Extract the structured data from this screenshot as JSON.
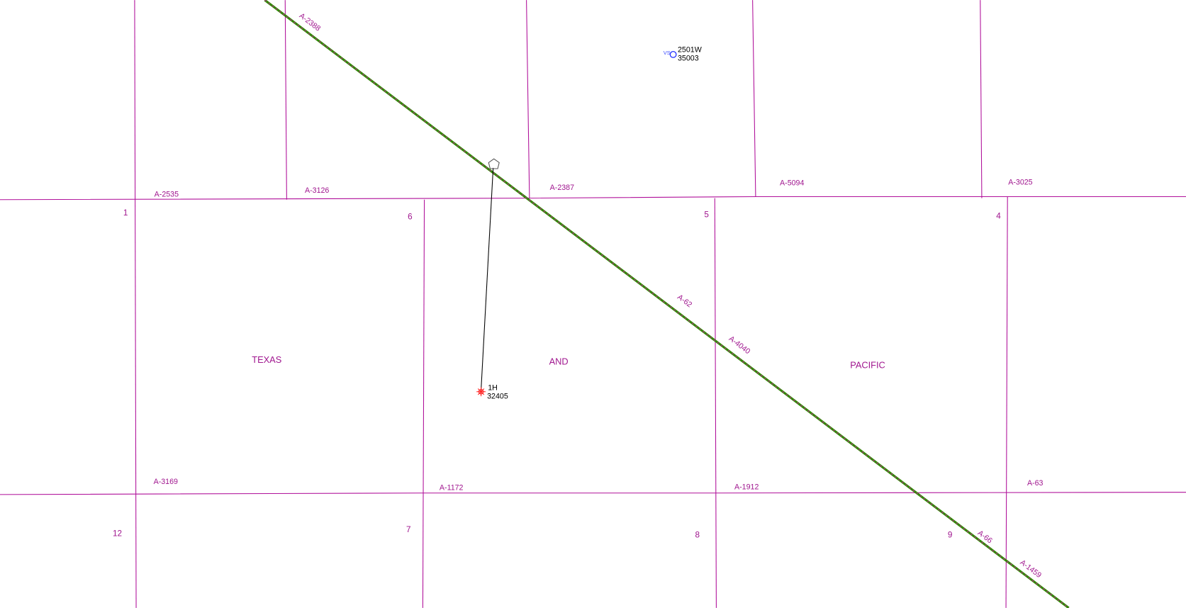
{
  "abstracts": {
    "a2388": "A-2388",
    "a2535": "A-2535",
    "a3126": "A-3126",
    "a2387": "A-2387",
    "a5094": "A-5094",
    "a3025": "A-3025",
    "a62": "A-62",
    "a4040": "A-4040",
    "a3169": "A-3169",
    "a1172": "A-1172",
    "a1912": "A-1912",
    "a63": "A-63",
    "a66": "A-66",
    "a1459": "A-1459"
  },
  "sections": {
    "s1": "1",
    "s6": "6",
    "s5": "5",
    "s4": "4",
    "s12": "12",
    "s7": "7",
    "s8": "8",
    "s9": "9"
  },
  "survey_names": {
    "texas": "TEXAS",
    "and": "AND",
    "pacific": "PACIFIC"
  },
  "wells": [
    {
      "symbol_label": "VS",
      "name": "2501W",
      "number": "35003",
      "color": "#2030ff"
    },
    {
      "name": "1H",
      "number": "32405",
      "color": "#ff2020"
    }
  ],
  "colors": {
    "lease_lines": "#b0109a",
    "railroad": "#2e8b00"
  }
}
